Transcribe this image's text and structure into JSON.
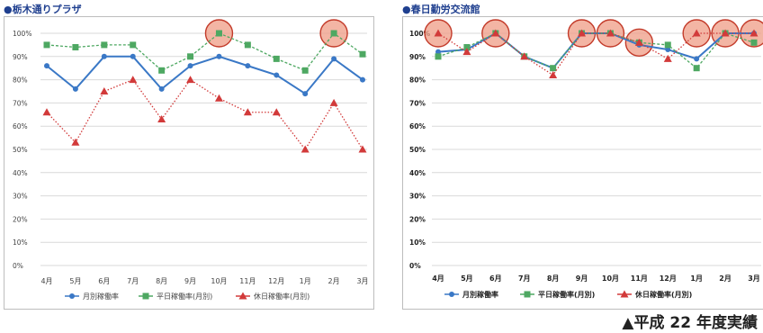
{
  "caption": "▲平成 22 年度実績",
  "colors": {
    "series1": "#3a78c6",
    "series2": "#4ea862",
    "series3": "#d23a3a",
    "grid": "#d9d9d9",
    "circle_fill": "#ef9c86",
    "circle_stroke": "#c33b2a"
  },
  "chart_data": [
    {
      "type": "line",
      "title": "●栃木通りプラザ",
      "x": [
        "4月",
        "5月",
        "6月",
        "7月",
        "8月",
        "9月",
        "10月",
        "11月",
        "12月",
        "1月",
        "2月",
        "3月"
      ],
      "yticks": [
        "0%",
        "10%",
        "20%",
        "30%",
        "40%",
        "50%",
        "60%",
        "70%",
        "80%",
        "90%",
        "100%"
      ],
      "ylim": [
        0,
        100
      ],
      "grid": true,
      "legend_position": "bottom",
      "series": [
        {
          "name": "月別稼働率",
          "values": [
            86,
            76,
            90,
            90,
            76,
            86,
            90,
            86,
            82,
            74,
            89,
            80
          ]
        },
        {
          "name": "平日稼働率(月別)",
          "values": [
            95,
            94,
            95,
            95,
            84,
            90,
            100,
            95,
            89,
            84,
            100,
            91
          ]
        },
        {
          "name": "休日稼働率(月別)",
          "values": [
            66,
            53,
            75,
            80,
            63,
            80,
            72,
            66,
            66,
            50,
            70,
            50
          ]
        }
      ],
      "highlighted_points": [
        {
          "series": "平日稼働率(月別)",
          "x": "10月"
        },
        {
          "series": "平日稼働率(月別)",
          "x": "2月"
        }
      ]
    },
    {
      "type": "line",
      "title": "●春日勤労交流館",
      "x": [
        "4月",
        "5月",
        "6月",
        "7月",
        "8月",
        "9月",
        "10月",
        "11月",
        "12月",
        "1月",
        "2月",
        "3月"
      ],
      "yticks": [
        "0%",
        "10%",
        "20%",
        "30%",
        "40%",
        "50%",
        "60%",
        "70%",
        "80%",
        "90%",
        "100%"
      ],
      "ylim": [
        0,
        100
      ],
      "grid": true,
      "legend_position": "bottom",
      "series": [
        {
          "name": "月別稼働率",
          "values": [
            92,
            93,
            100,
            90,
            85,
            100,
            100,
            95,
            93,
            89,
            100,
            100
          ]
        },
        {
          "name": "平日稼働率(月別)",
          "values": [
            90,
            94,
            100,
            90,
            85,
            100,
            100,
            96,
            95,
            85,
            100,
            96
          ]
        },
        {
          "name": "休日稼働率(月別)",
          "values": [
            100,
            92,
            100,
            90,
            82,
            100,
            100,
            96,
            89,
            100,
            100,
            100
          ]
        }
      ],
      "highlighted_points": [
        {
          "series": "休日稼働率(月別)",
          "x": "4月"
        },
        {
          "series": "休日稼働率(月別)",
          "x": "6月"
        },
        {
          "series": "休日稼働率(月別)",
          "x": "9月"
        },
        {
          "series": "休日稼働率(月別)",
          "x": "10月"
        },
        {
          "series": "休日稼働率(月別)",
          "x": "11月"
        },
        {
          "series": "休日稼働率(月別)",
          "x": "1月"
        },
        {
          "series": "休日稼働率(月別)",
          "x": "2月"
        },
        {
          "series": "休日稼働率(月別)",
          "x": "3月"
        }
      ]
    }
  ]
}
